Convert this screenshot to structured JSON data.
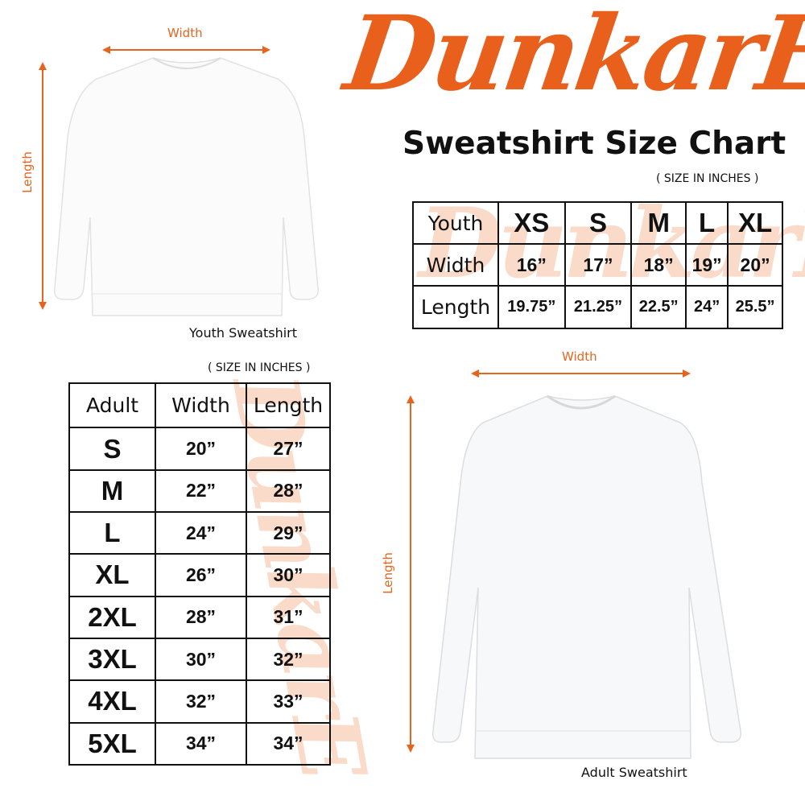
{
  "brand": {
    "logo_text": "DunkarE",
    "color": "#e8601c"
  },
  "title": "Sweatshirt Size Chart",
  "youth": {
    "units_note": "( SIZE IN INCHES )",
    "caption": "Youth Sweatshirt",
    "width_label": "Width",
    "length_label": "Length",
    "table": {
      "header": [
        "Youth",
        "XS",
        "S",
        "M",
        "L",
        "XL"
      ],
      "rows": [
        [
          "Width",
          "16”",
          "17”",
          "18”",
          "19”",
          "20”"
        ],
        [
          "Length",
          "19.75”",
          "21.25”",
          "22.5”",
          "24”",
          "25.5”"
        ]
      ]
    }
  },
  "adult": {
    "units_note": "( SIZE IN INCHES )",
    "caption": "Adult Sweatshirt",
    "width_label": "Width",
    "length_label": "Length",
    "table": {
      "header": [
        "Adult",
        "Width",
        "Length"
      ],
      "rows": [
        [
          "S",
          "20”",
          "27”"
        ],
        [
          "M",
          "22”",
          "28”"
        ],
        [
          "L",
          "24”",
          "29”"
        ],
        [
          "XL",
          "26”",
          "30”"
        ],
        [
          "2XL",
          "28”",
          "31”"
        ],
        [
          "3XL",
          "30”",
          "32”"
        ],
        [
          "4XL",
          "32”",
          "33”"
        ],
        [
          "5XL",
          "34”",
          "34”"
        ]
      ]
    }
  },
  "colors": {
    "accent": "#e8641e",
    "border": "#111111"
  }
}
